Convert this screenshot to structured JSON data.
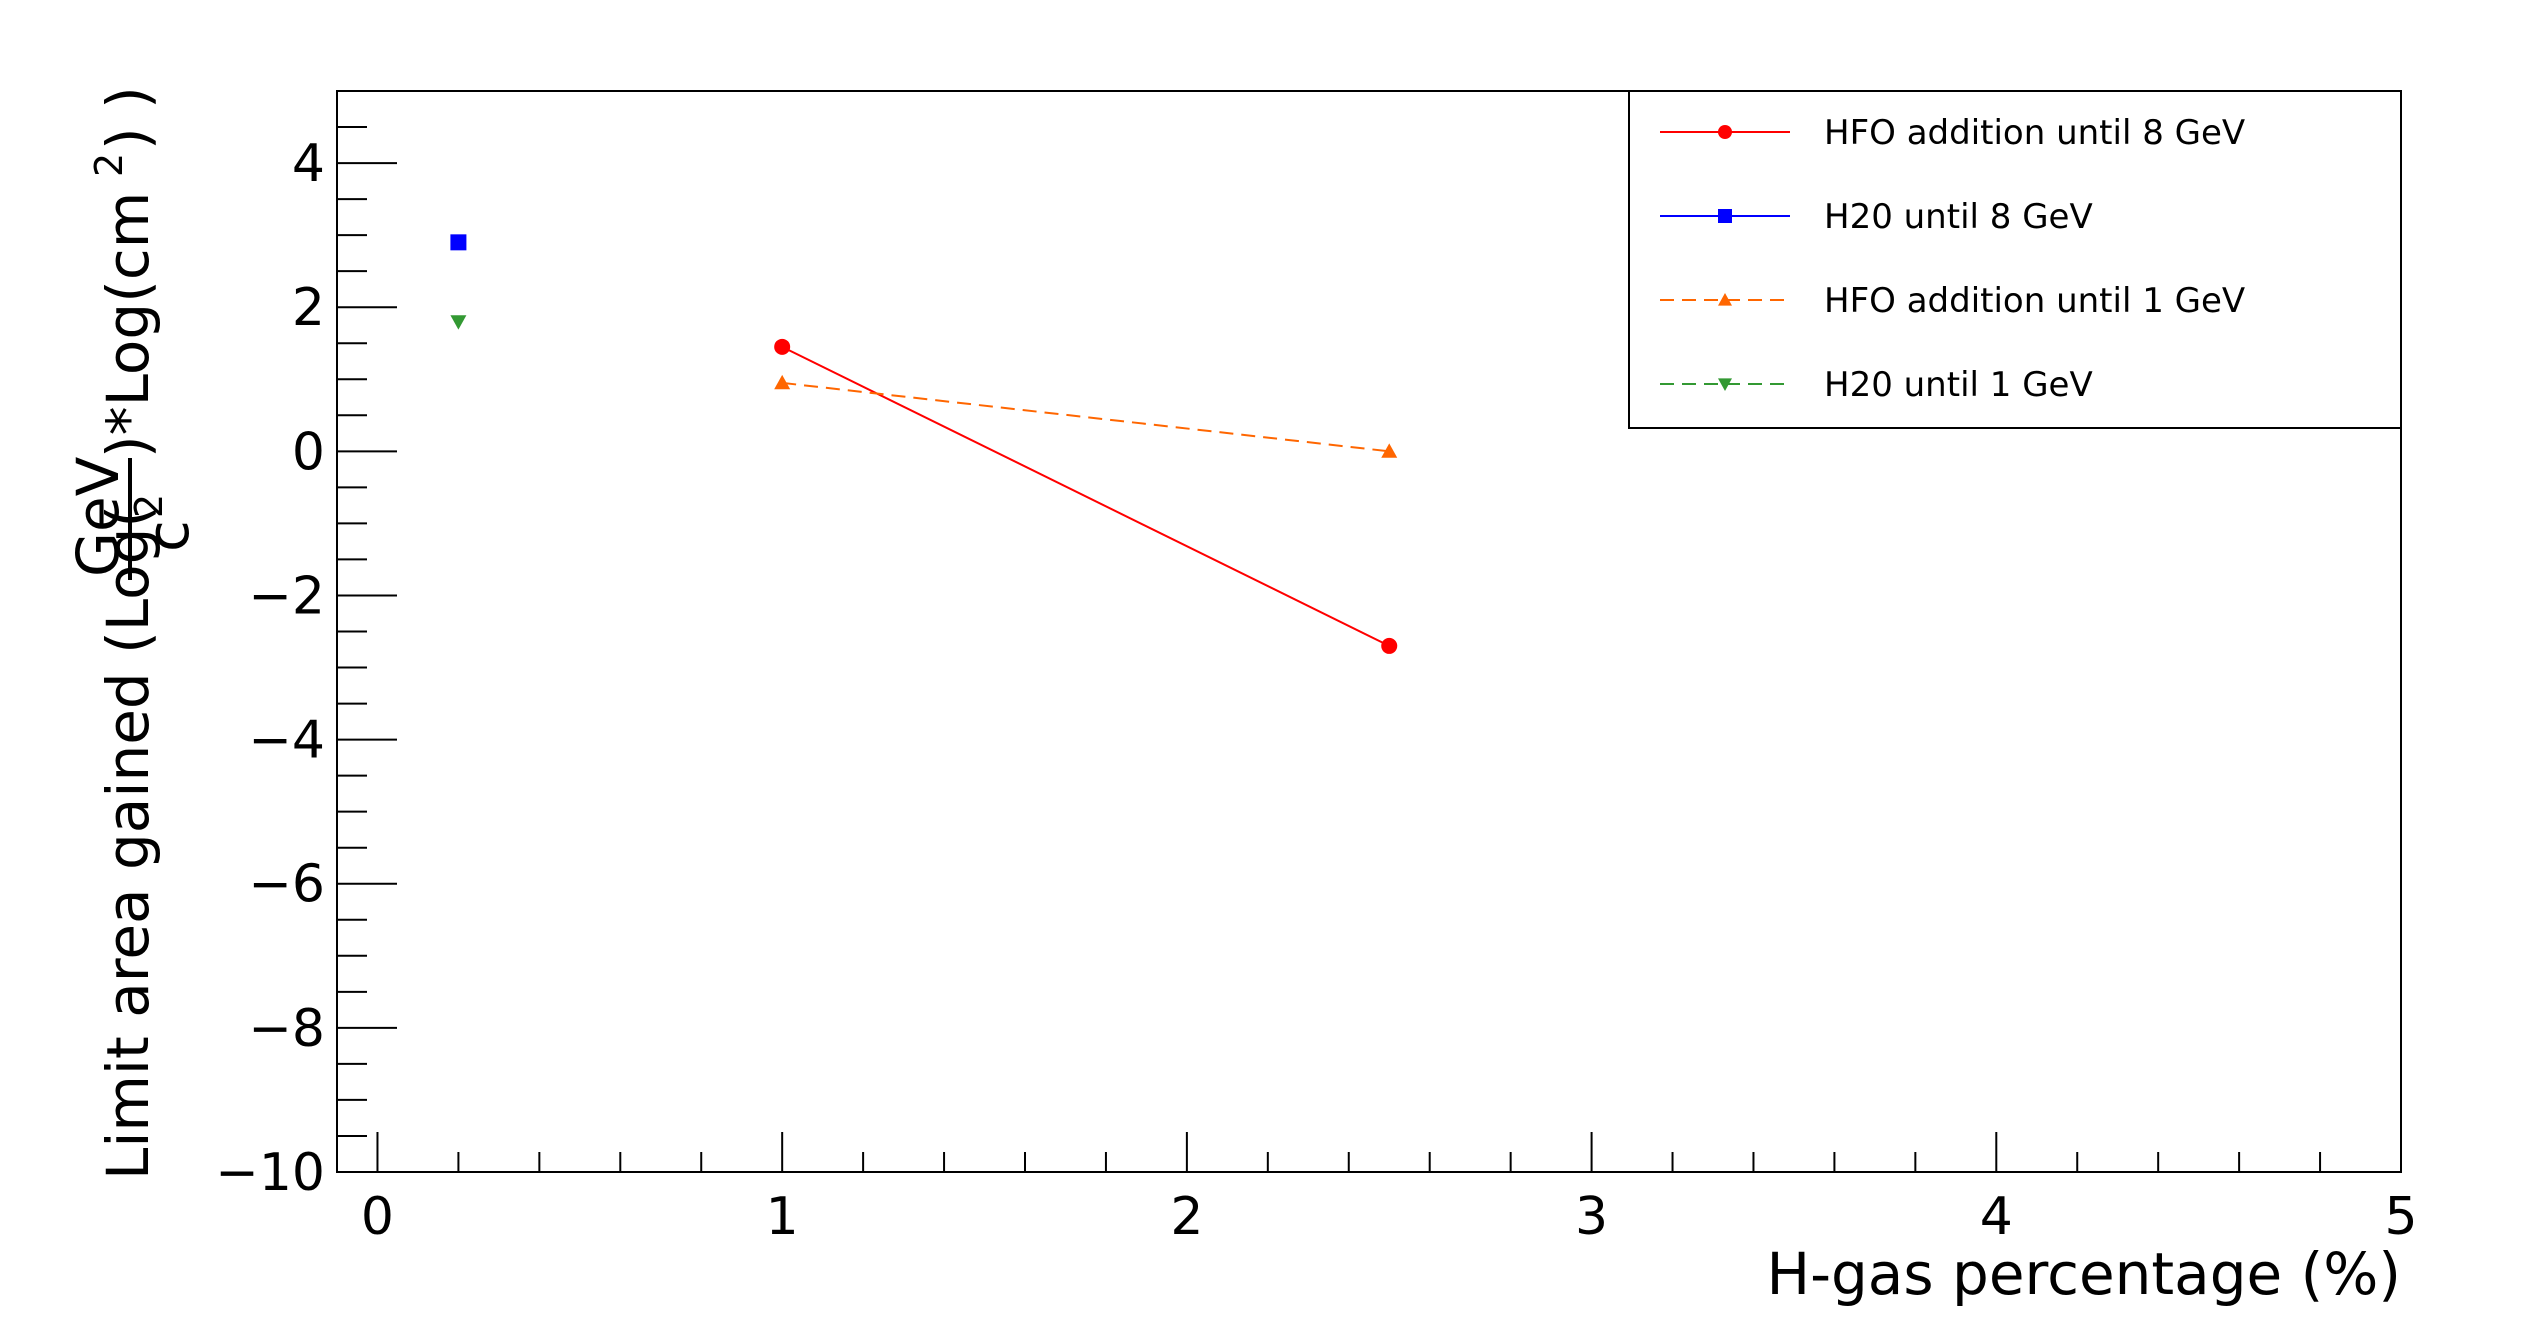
{
  "chart_data": {
    "type": "line",
    "xlabel": "H-gas percentage (%)",
    "ylabel": {
      "prefix": "Limit area gained (Log(",
      "frac_num": "GeV",
      "frac_den": "c",
      "frac_den_sup": "2",
      "mid": ")*Log(cm",
      "mid_sup": "2",
      "suffix": ") )"
    },
    "xlim": [
      -0.1,
      5
    ],
    "ylim": [
      -10,
      5
    ],
    "x_ticks": [
      0,
      1,
      2,
      3,
      4,
      5
    ],
    "y_ticks": [
      4,
      2,
      0,
      -2,
      -4,
      -6,
      -8,
      -10
    ],
    "y_tick_labels": [
      "4",
      "2",
      "0",
      "−2",
      "−4",
      "−6",
      "−8",
      "−10"
    ],
    "grid": false,
    "legend_position": "top-right",
    "series": [
      {
        "name": "HFO addition until 8 GeV",
        "x": [
          1,
          2.5
        ],
        "y": [
          1.45,
          -2.7
        ],
        "color": "#ff0000",
        "marker": "circle",
        "line": "solid"
      },
      {
        "name": "H20 until 8 GeV",
        "x": [
          0.2
        ],
        "y": [
          2.9
        ],
        "color": "#0000ff",
        "marker": "square",
        "line": "solid"
      },
      {
        "name": "HFO addition until 1 GeV",
        "x": [
          1,
          2.5
        ],
        "y": [
          0.95,
          0.0
        ],
        "color": "#ff6600",
        "marker": "triangle-up",
        "line": "dashed"
      },
      {
        "name": "H20 until 1 GeV",
        "x": [
          0.2
        ],
        "y": [
          1.8
        ],
        "color": "#339933",
        "marker": "triangle-down",
        "line": "dashed"
      }
    ]
  }
}
